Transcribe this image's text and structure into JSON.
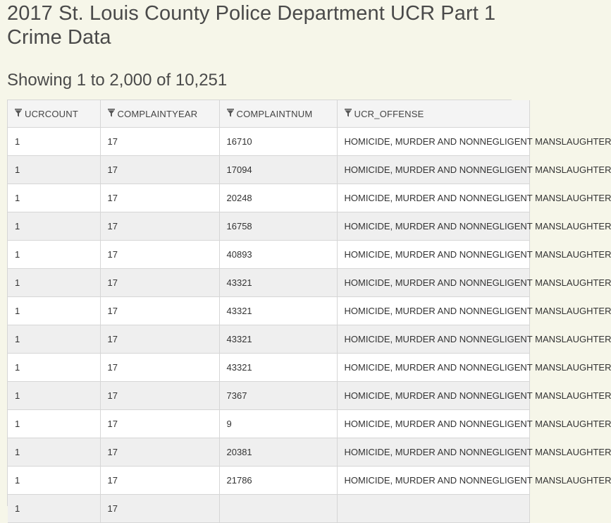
{
  "page": {
    "title": "2017 St. Louis County Police Department UCR Part 1 Crime Data",
    "record_count": "Showing 1 to 2,000 of 10,251"
  },
  "table": {
    "columns": [
      {
        "label": "UCRCOUNT",
        "icon": "filter-icon"
      },
      {
        "label": "COMPLAINTYEAR",
        "icon": "filter-icon"
      },
      {
        "label": "COMPLAINTNUM",
        "icon": "filter-icon"
      },
      {
        "label": "UCR_OFFENSE",
        "icon": "filter-icon"
      }
    ],
    "rows": [
      [
        "1",
        "17",
        "16710",
        "HOMICIDE, MURDER AND NONNEGLIGENT MANSLAUGHTER"
      ],
      [
        "1",
        "17",
        "17094",
        "HOMICIDE, MURDER AND NONNEGLIGENT MANSLAUGHTER"
      ],
      [
        "1",
        "17",
        "20248",
        "HOMICIDE, MURDER AND NONNEGLIGENT MANSLAUGHTER"
      ],
      [
        "1",
        "17",
        "16758",
        "HOMICIDE, MURDER AND NONNEGLIGENT MANSLAUGHTER"
      ],
      [
        "1",
        "17",
        "40893",
        "HOMICIDE, MURDER AND NONNEGLIGENT MANSLAUGHTER"
      ],
      [
        "1",
        "17",
        "43321",
        "HOMICIDE, MURDER AND NONNEGLIGENT MANSLAUGHTER"
      ],
      [
        "1",
        "17",
        "43321",
        "HOMICIDE, MURDER AND NONNEGLIGENT MANSLAUGHTER"
      ],
      [
        "1",
        "17",
        "43321",
        "HOMICIDE, MURDER AND NONNEGLIGENT MANSLAUGHTER"
      ],
      [
        "1",
        "17",
        "43321",
        "HOMICIDE, MURDER AND NONNEGLIGENT MANSLAUGHTER"
      ],
      [
        "1",
        "17",
        "7367",
        "HOMICIDE, MURDER AND NONNEGLIGENT MANSLAUGHTER"
      ],
      [
        "1",
        "17",
        "9",
        "HOMICIDE, MURDER AND NONNEGLIGENT MANSLAUGHTER"
      ],
      [
        "1",
        "17",
        "20381",
        "HOMICIDE, MURDER AND NONNEGLIGENT MANSLAUGHTER"
      ],
      [
        "1",
        "17",
        "21786",
        "HOMICIDE, MURDER AND NONNEGLIGENT MANSLAUGHTER"
      ],
      [
        "1",
        "17",
        "",
        ""
      ]
    ]
  }
}
